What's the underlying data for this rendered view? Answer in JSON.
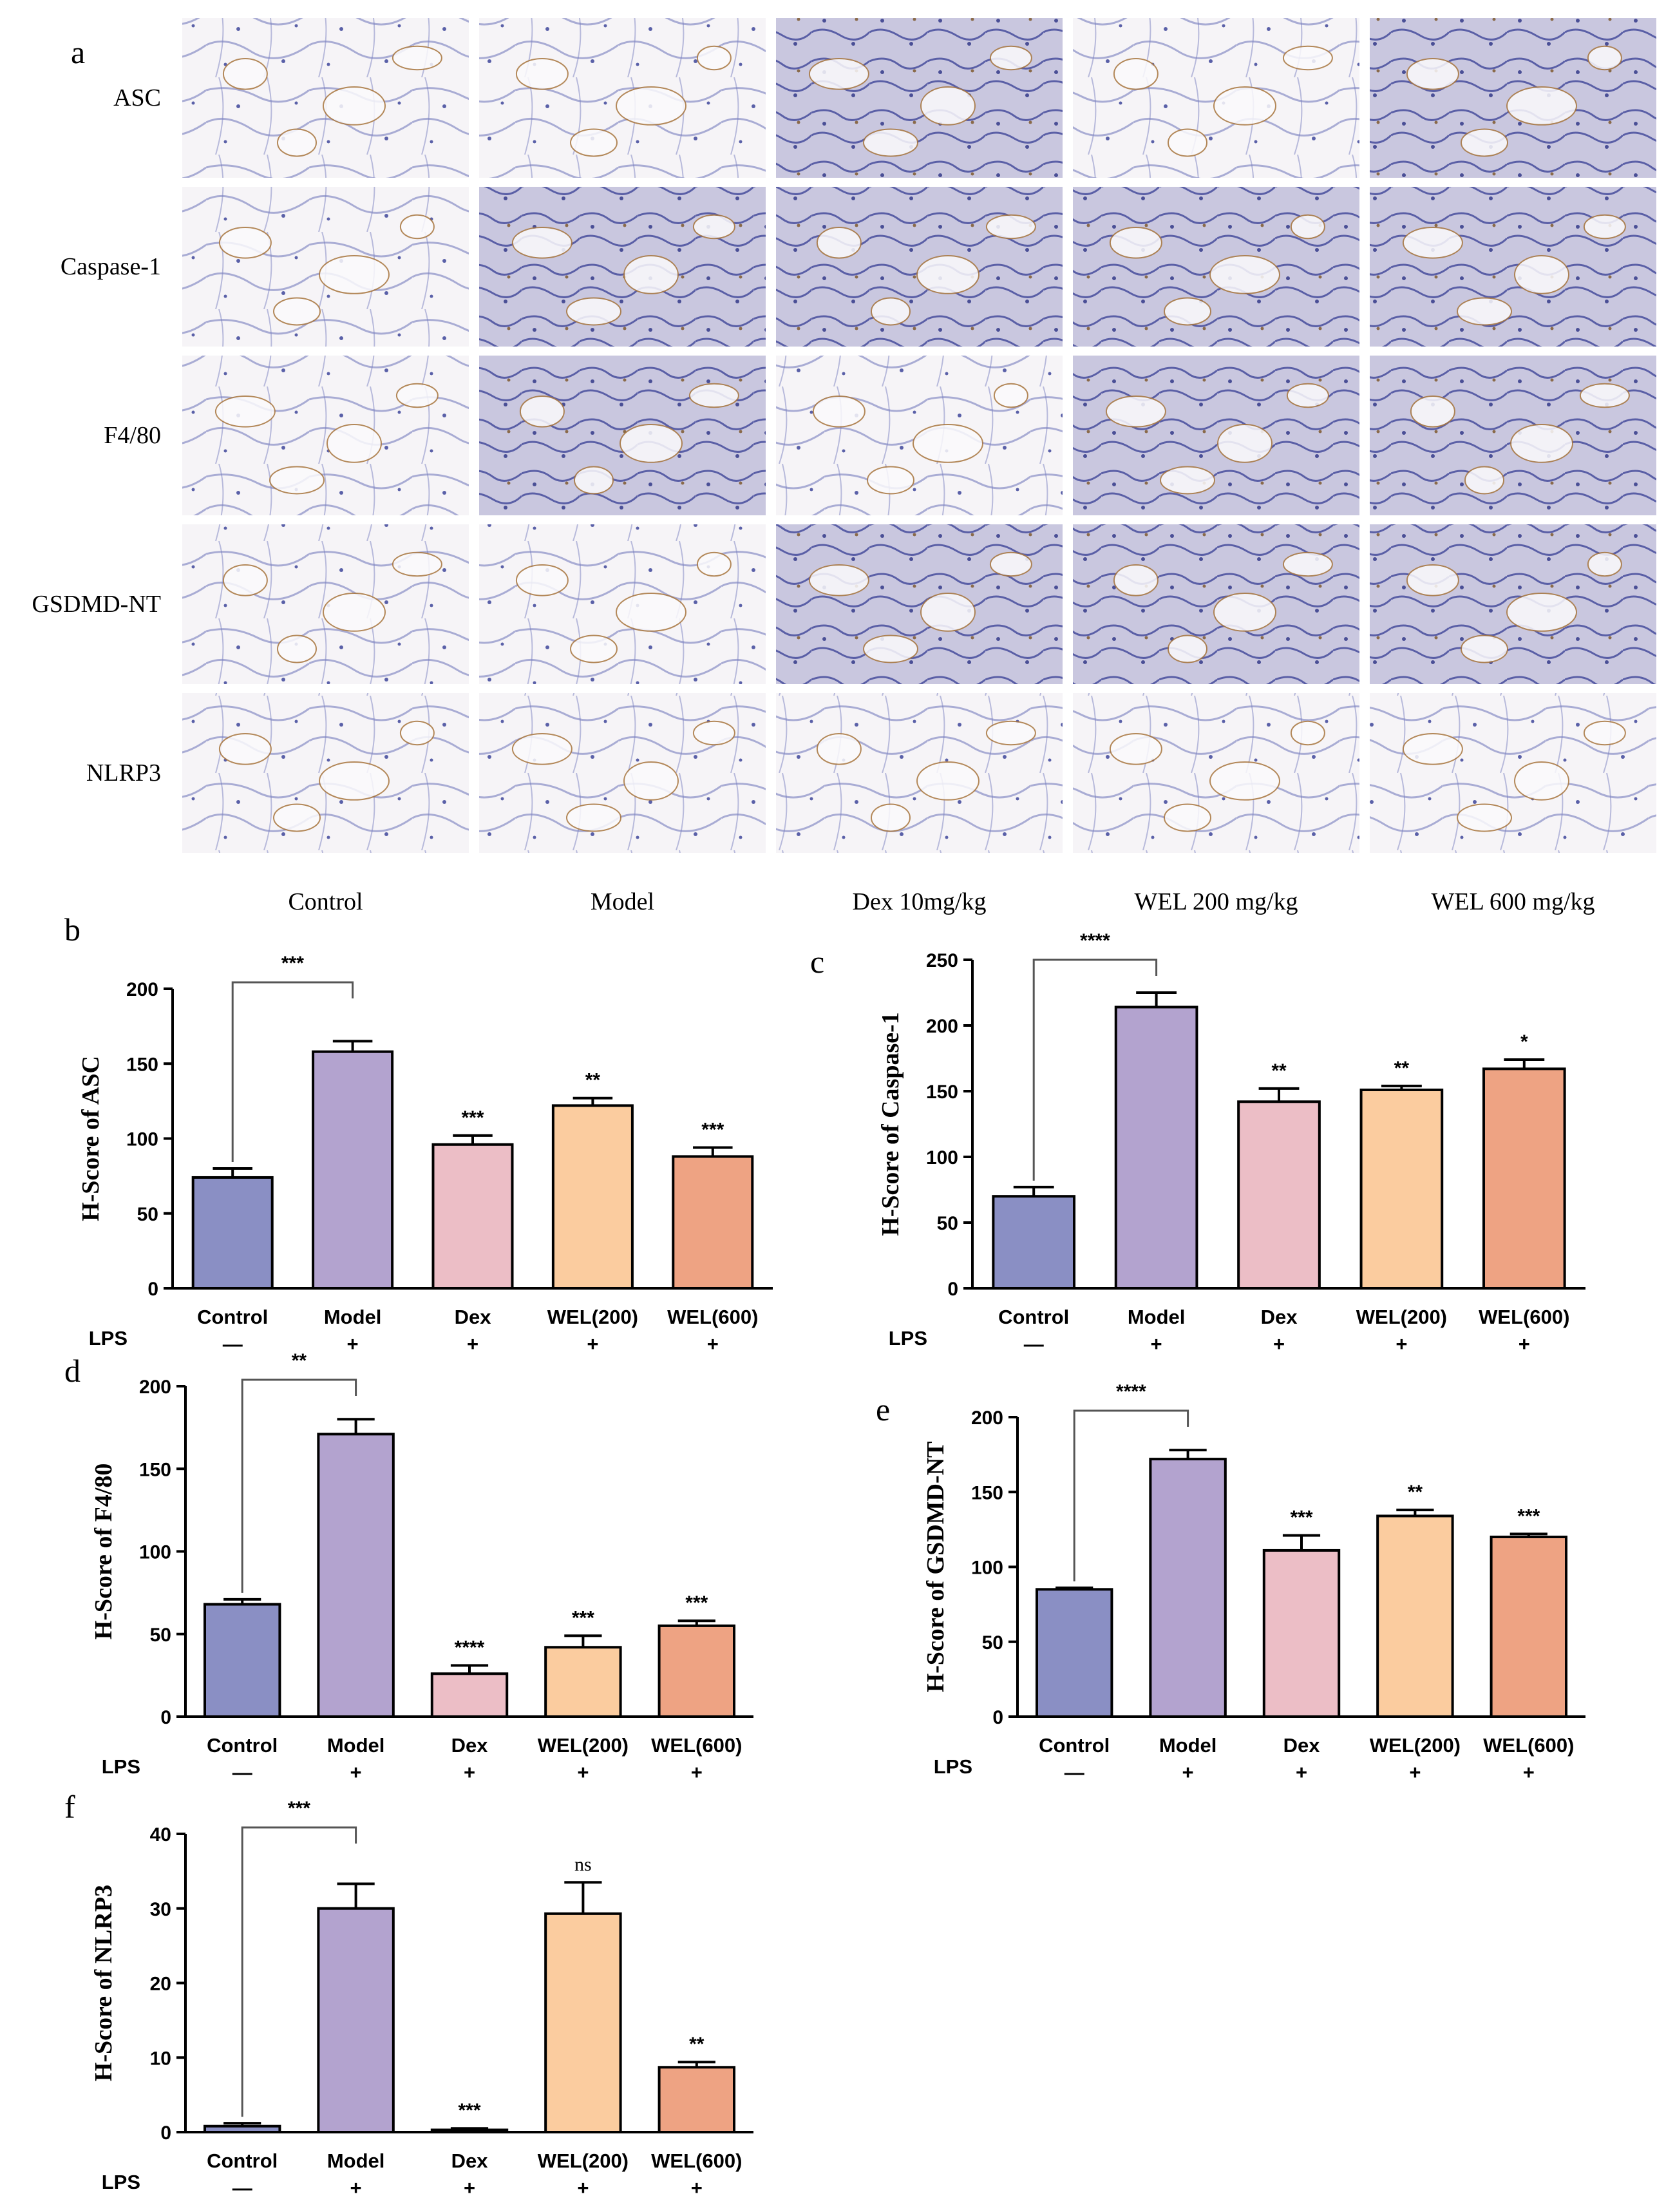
{
  "panel_letters": [
    "a",
    "b",
    "c",
    "d",
    "e",
    "f"
  ],
  "micrographs": {
    "rows": [
      "ASC",
      "Caspase-1",
      "F4/80",
      "GSDMD-NT",
      "NLRP3"
    ],
    "columns": [
      "Control",
      "Model",
      "Dex 10mg/kg",
      "WEL 200 mg/kg",
      "WEL 600 mg/kg"
    ],
    "stain_colors": {
      "hematoxylin": "#6a70b8",
      "dab": "#a8763e",
      "background": "#f6f4f7"
    }
  },
  "groups": {
    "labels": [
      "Control",
      "Model",
      "Dex",
      "WEL(200)",
      "WEL(600)"
    ],
    "lps_label": "LPS",
    "lps": [
      "—",
      "+",
      "+",
      "+",
      "+"
    ],
    "bar_colors": [
      "#8a8fc4",
      "#b3a3cf",
      "#ecbec6",
      "#fbcc9f",
      "#eea383"
    ]
  },
  "chart_data": [
    {
      "id": "b",
      "type": "bar",
      "categories": [
        "Control",
        "Model",
        "Dex",
        "WEL(200)",
        "WEL(600)"
      ],
      "values": [
        74,
        158,
        96,
        122,
        88
      ],
      "errors": [
        6,
        7,
        6,
        5,
        6
      ],
      "ylabel": "H-Score of ASC",
      "ylim": [
        0,
        200
      ],
      "yticks": [
        0,
        50,
        100,
        150,
        200
      ],
      "significance": [
        "",
        "",
        "***",
        "**",
        "***"
      ],
      "comparison": {
        "from": 0,
        "to": 1,
        "label": "***"
      }
    },
    {
      "id": "c",
      "type": "bar",
      "categories": [
        "Control",
        "Model",
        "Dex",
        "WEL(200)",
        "WEL(600)"
      ],
      "values": [
        70,
        214,
        142,
        151,
        167
      ],
      "errors": [
        7,
        11,
        10,
        3,
        7
      ],
      "ylabel": "H-Score of Caspase-1",
      "ylim": [
        0,
        250
      ],
      "yticks": [
        0,
        50,
        100,
        150,
        200,
        250
      ],
      "significance": [
        "",
        "",
        "**",
        "**",
        "*"
      ],
      "comparison": {
        "from": 0,
        "to": 1,
        "label": "****"
      }
    },
    {
      "id": "d",
      "type": "bar",
      "categories": [
        "Control",
        "Model",
        "Dex",
        "WEL(200)",
        "WEL(600)"
      ],
      "values": [
        68,
        171,
        26,
        42,
        55
      ],
      "errors": [
        3,
        9,
        5,
        7,
        3
      ],
      "ylabel": "H-Score of F4/80",
      "ylim": [
        0,
        200
      ],
      "yticks": [
        0,
        50,
        100,
        150,
        200
      ],
      "significance": [
        "",
        "",
        "****",
        "***",
        "***"
      ],
      "comparison": {
        "from": 0,
        "to": 1,
        "label": "**"
      }
    },
    {
      "id": "e",
      "type": "bar",
      "categories": [
        "Control",
        "Model",
        "Dex",
        "WEL(200)",
        "WEL(600)"
      ],
      "values": [
        85,
        172,
        111,
        134,
        120
      ],
      "errors": [
        1,
        6,
        10,
        4,
        2
      ],
      "ylabel": "H-Score of GSDMD-NT",
      "ylim": [
        0,
        200
      ],
      "yticks": [
        0,
        50,
        100,
        150,
        200
      ],
      "significance": [
        "",
        "",
        "***",
        "**",
        "***"
      ],
      "comparison": {
        "from": 0,
        "to": 1,
        "label": "****"
      }
    },
    {
      "id": "f",
      "type": "bar",
      "categories": [
        "Control",
        "Model",
        "Dex",
        "WEL(200)",
        "WEL(600)"
      ],
      "values": [
        0.8,
        30,
        0.3,
        29.3,
        8.7
      ],
      "errors": [
        0.4,
        3.3,
        0.2,
        4.2,
        0.7
      ],
      "ylabel": "H-Score of NLRP3",
      "ylim": [
        0,
        40
      ],
      "yticks": [
        0,
        10,
        20,
        30,
        40
      ],
      "significance": [
        "",
        "",
        "***",
        "ns",
        "**"
      ],
      "comparison": {
        "from": 0,
        "to": 1,
        "label": "***"
      }
    }
  ]
}
